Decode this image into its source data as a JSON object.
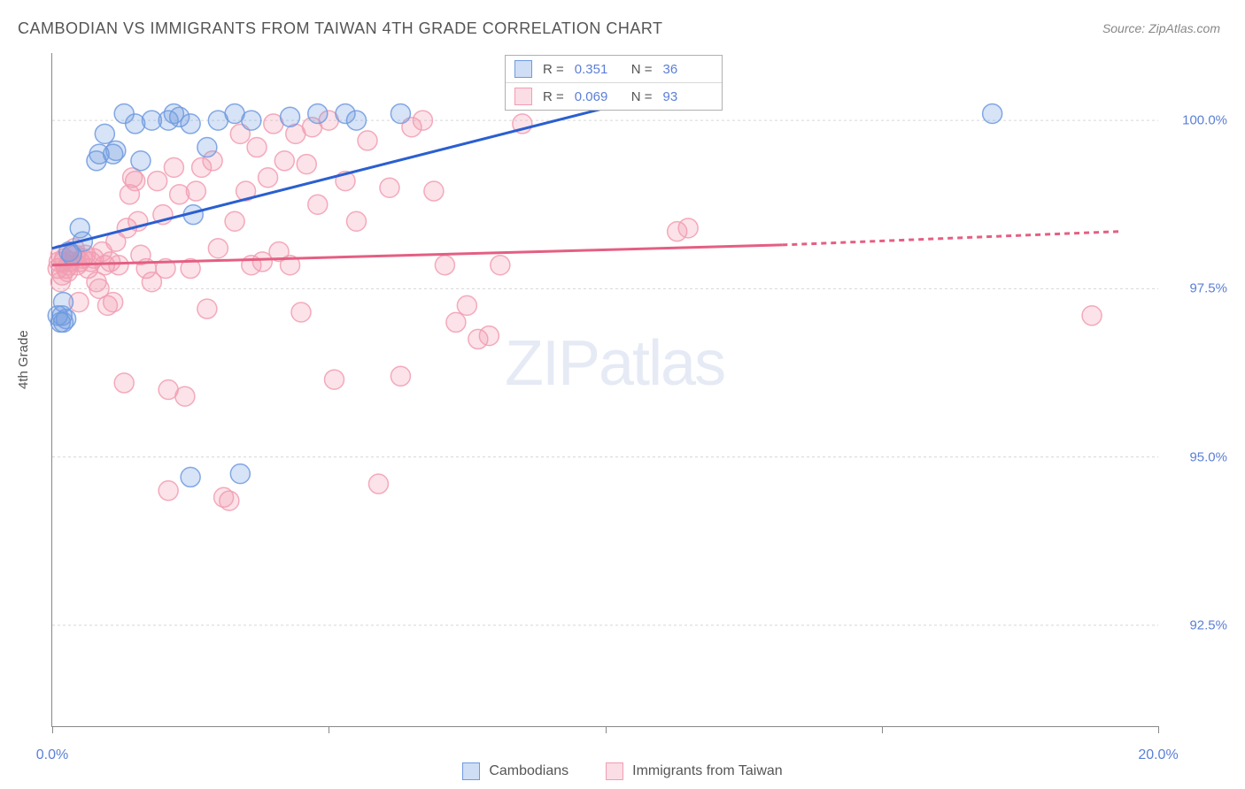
{
  "title": "CAMBODIAN VS IMMIGRANTS FROM TAIWAN 4TH GRADE CORRELATION CHART",
  "source": "Source: ZipAtlas.com",
  "watermark_a": "ZIP",
  "watermark_b": "atlas",
  "y_axis_label": "4th Grade",
  "chart": {
    "type": "scatter",
    "xlim": [
      0,
      20
    ],
    "ylim": [
      91,
      101
    ],
    "x_ticks": [
      0,
      5,
      10,
      15,
      20
    ],
    "x_tick_labels": [
      "0.0%",
      "",
      "",
      "",
      "20.0%"
    ],
    "y_ticks": [
      92.5,
      95.0,
      97.5,
      100.0
    ],
    "y_tick_labels": [
      "92.5%",
      "95.0%",
      "97.5%",
      "100.0%"
    ],
    "grid_color": "#d6d6d6",
    "background_color": "#ffffff",
    "marker_radius": 11,
    "marker_fill_opacity": 0.28,
    "marker_stroke_opacity": 0.85,
    "trend_line_width": 3,
    "series": {
      "cambodian": {
        "label": "Cambodians",
        "color": "#6f9ae0",
        "trend_color": "#2a5fd0",
        "R": "0.351",
        "N": "36",
        "points": [
          [
            0.1,
            97.1
          ],
          [
            0.15,
            97.0
          ],
          [
            0.2,
            97.3
          ],
          [
            0.18,
            97.1
          ],
          [
            0.25,
            97.05
          ],
          [
            0.3,
            98.05
          ],
          [
            0.35,
            98.0
          ],
          [
            0.5,
            98.4
          ],
          [
            0.55,
            98.2
          ],
          [
            0.8,
            99.4
          ],
          [
            0.85,
            99.5
          ],
          [
            0.95,
            99.8
          ],
          [
            1.1,
            99.5
          ],
          [
            1.15,
            99.55
          ],
          [
            1.3,
            100.1
          ],
          [
            1.5,
            99.95
          ],
          [
            1.6,
            99.4
          ],
          [
            1.8,
            100.0
          ],
          [
            2.1,
            100.0
          ],
          [
            2.2,
            100.1
          ],
          [
            2.3,
            100.05
          ],
          [
            2.5,
            99.95
          ],
          [
            2.55,
            98.6
          ],
          [
            2.8,
            99.6
          ],
          [
            3.0,
            100.0
          ],
          [
            3.3,
            100.1
          ],
          [
            3.6,
            100.0
          ],
          [
            4.3,
            100.05
          ],
          [
            4.8,
            100.1
          ],
          [
            5.3,
            100.1
          ],
          [
            5.5,
            100.0
          ],
          [
            6.3,
            100.1
          ],
          [
            2.5,
            94.7
          ],
          [
            3.4,
            94.75
          ],
          [
            17.0,
            100.1
          ],
          [
            0.2,
            97.0
          ]
        ],
        "trend": {
          "x1": 0,
          "y1": 98.1,
          "x2": 12.0,
          "y2": 100.6
        }
      },
      "taiwan": {
        "label": "Immigrants from Taiwan",
        "color": "#f29cb1",
        "trend_color": "#e45f82",
        "R": "0.069",
        "N": "93",
        "points": [
          [
            0.1,
            97.8
          ],
          [
            0.12,
            97.9
          ],
          [
            0.15,
            98.0
          ],
          [
            0.18,
            97.7
          ],
          [
            0.2,
            97.9
          ],
          [
            0.22,
            97.95
          ],
          [
            0.25,
            97.8
          ],
          [
            0.28,
            97.75
          ],
          [
            0.3,
            97.85
          ],
          [
            0.32,
            97.9
          ],
          [
            0.35,
            98.0
          ],
          [
            0.4,
            98.1
          ],
          [
            0.42,
            98.0
          ],
          [
            0.45,
            97.85
          ],
          [
            0.48,
            97.3
          ],
          [
            0.5,
            97.9
          ],
          [
            0.55,
            97.95
          ],
          [
            0.6,
            98.0
          ],
          [
            0.65,
            97.8
          ],
          [
            0.7,
            97.9
          ],
          [
            0.75,
            97.95
          ],
          [
            0.8,
            97.6
          ],
          [
            0.85,
            97.5
          ],
          [
            0.9,
            98.05
          ],
          [
            0.95,
            97.85
          ],
          [
            1.0,
            97.25
          ],
          [
            1.05,
            97.9
          ],
          [
            1.1,
            97.3
          ],
          [
            1.15,
            98.2
          ],
          [
            1.2,
            97.85
          ],
          [
            1.3,
            96.1
          ],
          [
            1.35,
            98.4
          ],
          [
            1.4,
            98.9
          ],
          [
            1.45,
            99.15
          ],
          [
            1.5,
            99.1
          ],
          [
            1.55,
            98.5
          ],
          [
            1.6,
            98.0
          ],
          [
            1.7,
            97.8
          ],
          [
            1.8,
            97.6
          ],
          [
            1.9,
            99.1
          ],
          [
            2.0,
            98.6
          ],
          [
            2.05,
            97.8
          ],
          [
            2.1,
            96.0
          ],
          [
            2.2,
            99.3
          ],
          [
            2.3,
            98.9
          ],
          [
            2.4,
            95.9
          ],
          [
            2.5,
            97.8
          ],
          [
            2.6,
            98.95
          ],
          [
            2.7,
            99.3
          ],
          [
            2.8,
            97.2
          ],
          [
            2.9,
            99.4
          ],
          [
            3.0,
            98.1
          ],
          [
            3.1,
            94.4
          ],
          [
            3.2,
            94.35
          ],
          [
            3.3,
            98.5
          ],
          [
            3.4,
            99.8
          ],
          [
            3.5,
            98.95
          ],
          [
            3.6,
            97.85
          ],
          [
            3.7,
            99.6
          ],
          [
            3.8,
            97.9
          ],
          [
            3.9,
            99.15
          ],
          [
            4.0,
            99.95
          ],
          [
            4.1,
            98.05
          ],
          [
            4.2,
            99.4
          ],
          [
            4.3,
            97.85
          ],
          [
            4.4,
            99.8
          ],
          [
            4.5,
            97.15
          ],
          [
            4.6,
            99.35
          ],
          [
            4.7,
            99.9
          ],
          [
            4.8,
            98.75
          ],
          [
            5.0,
            100.0
          ],
          [
            5.1,
            96.15
          ],
          [
            5.3,
            99.1
          ],
          [
            5.5,
            98.5
          ],
          [
            5.7,
            99.7
          ],
          [
            5.9,
            94.6
          ],
          [
            6.1,
            99.0
          ],
          [
            6.3,
            96.2
          ],
          [
            6.5,
            99.9
          ],
          [
            6.7,
            100.0
          ],
          [
            6.9,
            98.95
          ],
          [
            7.1,
            97.85
          ],
          [
            7.3,
            97.0
          ],
          [
            7.5,
            97.25
          ],
          [
            7.7,
            96.75
          ],
          [
            7.9,
            96.8
          ],
          [
            8.1,
            97.85
          ],
          [
            8.5,
            99.95
          ],
          [
            11.3,
            98.35
          ],
          [
            11.5,
            98.4
          ],
          [
            18.8,
            97.1
          ],
          [
            2.1,
            94.5
          ],
          [
            0.15,
            97.6
          ]
        ],
        "trend_solid": {
          "x1": 0,
          "y1": 97.85,
          "x2": 13.2,
          "y2": 98.15
        },
        "trend_dash": {
          "x1": 13.2,
          "y1": 98.15,
          "x2": 19.3,
          "y2": 98.35
        }
      }
    }
  },
  "stat_legend": {
    "r_label": "R =",
    "n_label": "N ="
  }
}
